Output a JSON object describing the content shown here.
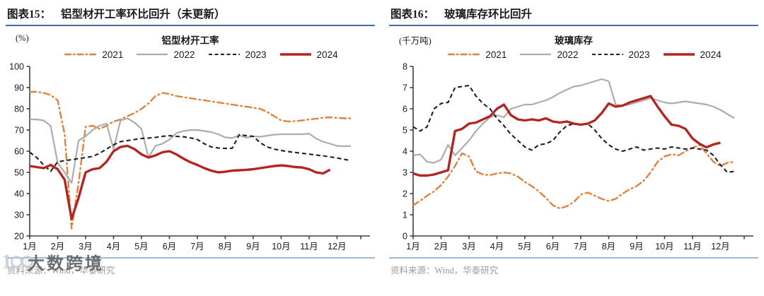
{
  "watermark": {
    "logo_text": "1",
    "text": "大数跨境"
  },
  "figures": [
    {
      "header_label": "图表15：",
      "header_title": "铝型材开工率环比回升（未更新）",
      "unit": "(%)",
      "chart_title": "铝型材开工率",
      "source": "资料来源：Wind，华泰研究",
      "accent_rule_color": "#406F9F",
      "footer_rule_color": "#9FB9D0",
      "chart_data": {
        "type": "line",
        "title": "铝型材开工率",
        "ylabel": "(%)",
        "ylim": [
          20,
          100
        ],
        "ytick_step": 10,
        "x_domain": [
          1,
          12.85
        ],
        "x_labels": [
          "1月",
          "2月",
          "3月",
          "4月",
          "5月",
          "6月",
          "7月",
          "8月",
          "9月",
          "10月",
          "11月",
          "12月"
        ],
        "grid": false,
        "legend_position": "top",
        "series": [
          {
            "name": "2021",
            "color": "#E0823C",
            "style": "dashdot",
            "width": 2.4,
            "x_start": 1,
            "x_step": 0.25,
            "values": [
              88,
              88,
              87.5,
              86.5,
              84,
              68,
              23.5,
              45,
              71.5,
              72,
              70.5,
              72,
              74,
              75,
              76.5,
              78,
              80,
              82.5,
              86,
              87.5,
              87,
              86,
              85.5,
              85,
              84.5,
              84,
              83.5,
              83,
              82.5,
              82,
              81.5,
              81,
              80.5,
              80,
              78.5,
              76.5,
              74.5,
              74,
              74.2,
              74.5,
              75,
              75.3,
              75.8,
              76,
              75.7,
              75.5,
              75.5
            ]
          },
          {
            "name": "2022",
            "color": "#ACACAC",
            "style": "solid",
            "width": 2.2,
            "x_start": 1,
            "x_step": 0.25,
            "values": [
              75,
              75,
              74.5,
              72,
              54.5,
              50,
              45,
              65,
              67,
              70,
              72,
              73,
              61,
              74.5,
              75.5,
              73.5,
              70.5,
              57,
              62.5,
              63.5,
              65.5,
              68.5,
              69.5,
              70,
              70,
              69.5,
              69,
              68,
              66.5,
              66.2,
              67.5,
              66.4,
              67,
              66.8,
              67.3,
              67.8,
              68,
              68,
              68,
              68,
              68.3,
              66,
              64.5,
              63.5,
              62.5,
              62.3,
              62.5
            ]
          },
          {
            "name": "2023",
            "color": "#1F1F1F",
            "style": "dashed",
            "width": 2.1,
            "x_start": 1,
            "x_step": 0.25,
            "values": [
              59.5,
              57,
              53.5,
              50.5,
              55,
              55.5,
              56,
              56.5,
              57,
              57.5,
              59,
              61,
              63,
              64.5,
              65,
              65.5,
              66,
              66.2,
              66.5,
              67,
              67.3,
              67,
              66.8,
              66.3,
              65.5,
              63.5,
              62,
              61.5,
              61.3,
              61.4,
              67.8,
              67.3,
              67,
              64,
              62,
              61,
              60.3,
              59.8,
              59.4,
              59,
              58.6,
              58.2,
              57.8,
              57.3,
              56.8,
              56.2,
              55.5
            ]
          },
          {
            "name": "2024",
            "color": "#B42521",
            "style": "solid",
            "width": 3.4,
            "x_start": 1,
            "x_step": 0.25,
            "values": [
              53,
              52.5,
              52,
              53.5,
              51.5,
              46.5,
              28,
              38,
              50,
              51.5,
              52,
              55,
              60,
              62,
              62.5,
              61,
              58.5,
              57,
              58,
              59.5,
              60,
              58.5,
              56.5,
              54.8,
              53.5,
              52,
              50.8,
              50,
              50.3,
              50.8,
              51,
              51.2,
              51.5,
              52,
              52.5,
              53,
              53.3,
              53,
              52.5,
              52.3,
              51.5,
              50,
              49.5,
              51.3
            ]
          }
        ]
      }
    },
    {
      "header_label": "图表16：",
      "header_title": "玻璃库存环比回升",
      "unit": "(千万吨)",
      "chart_title": "玻璃库存",
      "source": "资料来源：Wind，华泰研究",
      "accent_rule_color": "#406F9F",
      "footer_rule_color": "#9FB9D0",
      "chart_data": {
        "type": "line",
        "title": "玻璃库存",
        "ylabel": "(千万吨)",
        "ylim": [
          0,
          8
        ],
        "ytick_step": 1,
        "x_domain": [
          1,
          12.85
        ],
        "x_labels": [
          "1月",
          "2月",
          "3月",
          "4月",
          "5月",
          "6月",
          "7月",
          "8月",
          "9月",
          "10月",
          "11月",
          "12月"
        ],
        "grid": false,
        "legend_position": "top",
        "series": [
          {
            "name": "2021",
            "color": "#E0823C",
            "style": "dashdot",
            "width": 2.4,
            "x_start": 1,
            "x_step": 0.25,
            "values": [
              1.45,
              1.65,
              1.9,
              2.1,
              2.4,
              2.8,
              3.3,
              3.9,
              3.75,
              3.05,
              2.9,
              2.87,
              2.95,
              3.0,
              2.95,
              2.8,
              2.55,
              2.35,
              2.1,
              1.8,
              1.45,
              1.3,
              1.4,
              1.6,
              1.95,
              2.05,
              1.9,
              1.75,
              1.65,
              1.75,
              2.0,
              2.2,
              2.35,
              2.6,
              3.0,
              3.5,
              3.75,
              3.85,
              3.8,
              4.0,
              4.15,
              4.3,
              3.9,
              3.5,
              3.3,
              3.45,
              3.5
            ]
          },
          {
            "name": "2022",
            "color": "#ACACAC",
            "style": "solid",
            "width": 2.2,
            "x_start": 1,
            "x_step": 0.25,
            "values": [
              3.8,
              3.85,
              3.5,
              3.45,
              3.6,
              4.3,
              3.8,
              4.15,
              4.5,
              4.95,
              5.3,
              5.6,
              5.7,
              5.6,
              6.0,
              6.1,
              6.2,
              6.2,
              6.3,
              6.4,
              6.55,
              6.75,
              6.9,
              7.05,
              7.1,
              7.2,
              7.3,
              7.4,
              7.3,
              6.2,
              6.15,
              6.2,
              6.3,
              6.4,
              6.5,
              6.4,
              6.3,
              6.25,
              6.3,
              6.35,
              6.3,
              6.25,
              6.2,
              6.1,
              5.95,
              5.75,
              5.55
            ]
          },
          {
            "name": "2023",
            "color": "#1F1F1F",
            "style": "dashed",
            "width": 2.1,
            "x_start": 1,
            "x_step": 0.25,
            "values": [
              5.15,
              4.95,
              5.15,
              6.0,
              6.25,
              6.3,
              7.0,
              7.05,
              7.1,
              6.6,
              6.25,
              6.0,
              5.55,
              5.2,
              4.8,
              4.5,
              4.2,
              4.05,
              4.3,
              4.35,
              4.5,
              4.9,
              5.2,
              5.3,
              5.25,
              5.3,
              5.0,
              4.6,
              4.3,
              4.1,
              4.0,
              4.1,
              4.2,
              4.05,
              4.1,
              4.15,
              4.1,
              4.2,
              4.15,
              4.1,
              4.15,
              4.1,
              4.05,
              3.8,
              3.35,
              3.0,
              3.05
            ]
          },
          {
            "name": "2024",
            "color": "#B42521",
            "style": "solid",
            "width": 3.4,
            "x_start": 1,
            "x_step": 0.25,
            "values": [
              2.95,
              2.85,
              2.85,
              2.9,
              3.0,
              3.1,
              4.95,
              5.05,
              5.3,
              5.35,
              5.5,
              5.65,
              6.0,
              6.2,
              5.7,
              5.5,
              5.45,
              5.5,
              5.45,
              5.55,
              5.4,
              5.35,
              5.4,
              5.3,
              5.25,
              5.3,
              5.45,
              5.8,
              6.25,
              6.1,
              6.15,
              6.3,
              6.4,
              6.5,
              6.6,
              6.1,
              5.65,
              5.25,
              5.2,
              5.05,
              4.6,
              4.35,
              4.18,
              4.32,
              4.4
            ]
          }
        ]
      }
    }
  ]
}
